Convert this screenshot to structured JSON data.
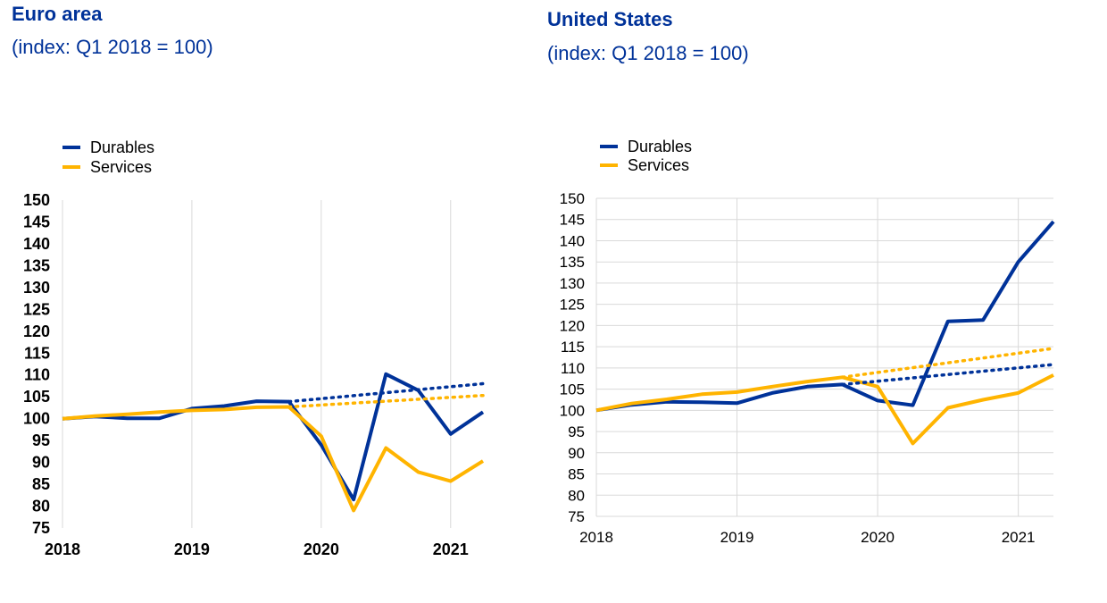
{
  "chart_data": [
    {
      "type": "line",
      "title": "Euro area",
      "subtitle": "(index: Q1 2018 = 100)",
      "x": [
        2018.0,
        2018.25,
        2018.5,
        2018.75,
        2019.0,
        2019.25,
        2019.5,
        2019.75,
        2020.0,
        2020.25,
        2020.5,
        2020.75,
        2021.0,
        2021.25
      ],
      "x_tick_labels": [
        "2018",
        "2019",
        "2020",
        "2021"
      ],
      "y_tick_labels": [
        "75",
        "80",
        "85",
        "90",
        "95",
        "100",
        "105",
        "110",
        "115",
        "120",
        "125",
        "130",
        "135",
        "140",
        "145",
        "150"
      ],
      "ylim": [
        75,
        150
      ],
      "xlim": [
        2018.0,
        2021.25
      ],
      "grid": "vertical",
      "legend_position": "top-left",
      "series": [
        {
          "name": "Durables",
          "color": "#003299",
          "style": "solid",
          "x": [
            2018.0,
            2018.25,
            2018.5,
            2018.75,
            2019.0,
            2019.25,
            2019.5,
            2019.75,
            2020.0,
            2020.25,
            2020.5,
            2020.75,
            2021.0,
            2021.25
          ],
          "values": [
            100.0,
            100.5,
            100.1,
            100.1,
            102.3,
            102.9,
            104.0,
            103.9,
            94.0,
            81.5,
            110.2,
            106.5,
            96.5,
            101.5
          ]
        },
        {
          "name": "Services",
          "color": "#FFB400",
          "style": "solid",
          "x": [
            2018.0,
            2018.25,
            2018.5,
            2018.75,
            2019.0,
            2019.25,
            2019.5,
            2019.75,
            2020.0,
            2020.25,
            2020.5,
            2020.75,
            2021.0,
            2021.25
          ],
          "values": [
            100.0,
            100.6,
            101.0,
            101.5,
            101.9,
            102.1,
            102.6,
            102.7,
            96.0,
            79.0,
            93.3,
            87.8,
            85.7,
            90.3
          ]
        },
        {
          "name": "",
          "color": "#003299",
          "style": "dotted",
          "x": [
            2019.75,
            2021.25
          ],
          "values": [
            103.9,
            108.0
          ]
        },
        {
          "name": "",
          "color": "#FFB400",
          "style": "dotted",
          "x": [
            2019.75,
            2021.25
          ],
          "values": [
            102.7,
            105.3
          ]
        }
      ]
    },
    {
      "type": "line",
      "title": "United States",
      "subtitle": "(index: Q1 2018 = 100)",
      "x": [
        2018.0,
        2018.25,
        2018.5,
        2018.75,
        2019.0,
        2019.25,
        2019.5,
        2019.75,
        2020.0,
        2020.25,
        2020.5,
        2020.75,
        2021.0,
        2021.25
      ],
      "x_tick_labels": [
        "2018",
        "2019",
        "2020",
        "2021"
      ],
      "y_tick_labels": [
        "75",
        "80",
        "85",
        "90",
        "95",
        "100",
        "105",
        "110",
        "115",
        "120",
        "125",
        "130",
        "135",
        "140",
        "145",
        "150"
      ],
      "ylim": [
        75,
        150
      ],
      "xlim": [
        2018.0,
        2021.25
      ],
      "grid": "both",
      "legend_position": "top-left",
      "series": [
        {
          "name": "Durables",
          "color": "#003299",
          "style": "solid",
          "x": [
            2018.0,
            2018.25,
            2018.5,
            2018.75,
            2019.0,
            2019.25,
            2019.5,
            2019.75,
            2020.0,
            2020.25,
            2020.5,
            2020.75,
            2021.0,
            2021.25
          ],
          "values": [
            100.0,
            101.3,
            102.0,
            101.9,
            101.7,
            104.1,
            105.6,
            106.1,
            102.3,
            101.2,
            121.0,
            121.3,
            135.0,
            144.5
          ]
        },
        {
          "name": "Services",
          "color": "#FFB400",
          "style": "solid",
          "x": [
            2018.0,
            2018.25,
            2018.5,
            2018.75,
            2019.0,
            2019.25,
            2019.5,
            2019.75,
            2020.0,
            2020.25,
            2020.5,
            2020.75,
            2021.0,
            2021.25
          ],
          "values": [
            100.0,
            101.6,
            102.6,
            103.8,
            104.3,
            105.6,
            106.8,
            107.8,
            105.6,
            92.2,
            100.6,
            102.5,
            104.1,
            108.3
          ]
        },
        {
          "name": "",
          "color": "#003299",
          "style": "dotted",
          "x": [
            2019.75,
            2021.25
          ],
          "values": [
            106.1,
            110.8
          ]
        },
        {
          "name": "",
          "color": "#FFB400",
          "style": "dotted",
          "x": [
            2019.75,
            2021.25
          ],
          "values": [
            107.8,
            114.6
          ]
        }
      ]
    }
  ]
}
